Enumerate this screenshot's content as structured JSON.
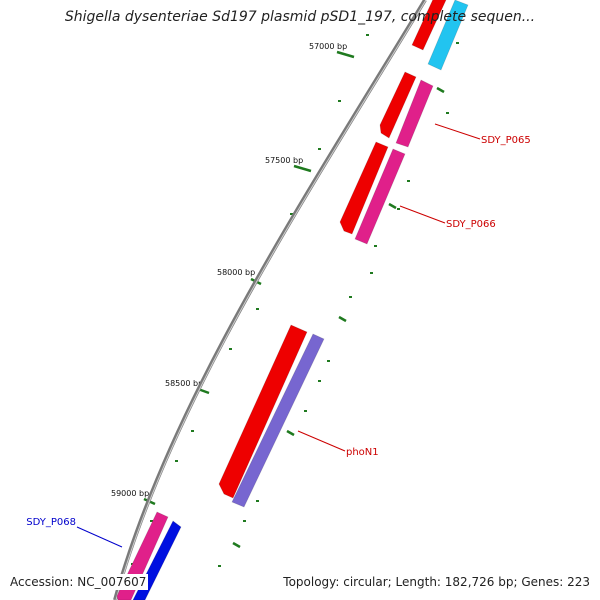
{
  "title": "Shigella dysenteriae Sd197 plasmid pSD1_197, complete sequen...",
  "footer": {
    "accession": "Accession: NC_007607",
    "stats": "Topology: circular; Length: 182,726 bp; Genes: 223"
  },
  "ticks": [
    {
      "bp": 57000,
      "label": "57000 bp"
    },
    {
      "bp": 57500,
      "label": "57500 bp"
    },
    {
      "bp": 58000,
      "label": "58000 bp"
    },
    {
      "bp": 58500,
      "label": "58500 bp"
    },
    {
      "bp": 59000,
      "label": "59000 bp"
    }
  ],
  "gene_labels": [
    {
      "name": "SDY_P065",
      "color": "#cc0000"
    },
    {
      "name": "SDY_P066",
      "color": "#cc0000"
    },
    {
      "name": "phoN1",
      "color": "#cc0000"
    },
    {
      "name": "SDY_P068",
      "color": "#0000cc"
    }
  ],
  "colors": {
    "backbone": "#7a7a7a",
    "tick": "#1f7a1f",
    "red_gene": "#ee0000",
    "magenta_gene": "#e0208a",
    "cyan_gene": "#22c4f0",
    "purple_gene": "#7766d0",
    "blue_gene": "#0010e0"
  }
}
